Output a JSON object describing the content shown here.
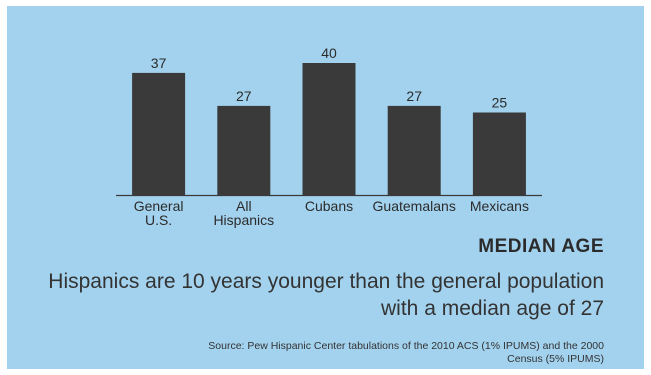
{
  "chart_data": {
    "type": "bar",
    "categories": [
      "General\nU.S.",
      "All\nHispanics",
      "Cubans",
      "Guatemalans",
      "Mexicans"
    ],
    "values": [
      37,
      27,
      40,
      27,
      25
    ],
    "title": "MEDIAN AGE",
    "ylim": [
      0,
      40
    ],
    "grid": false,
    "bar_color": "#3a3a3a",
    "axis_color": "#3a3a3a"
  },
  "headline": "Hispanics are 10 years younger than the general population with a median age of 27",
  "source": "Source: Pew Hispanic Center tabulations of the 2010 ACS (1% IPUMS) and the 2000 Census (5% IPUMS)",
  "colors": {
    "background": "#a3d2ee",
    "text": "#333333"
  }
}
